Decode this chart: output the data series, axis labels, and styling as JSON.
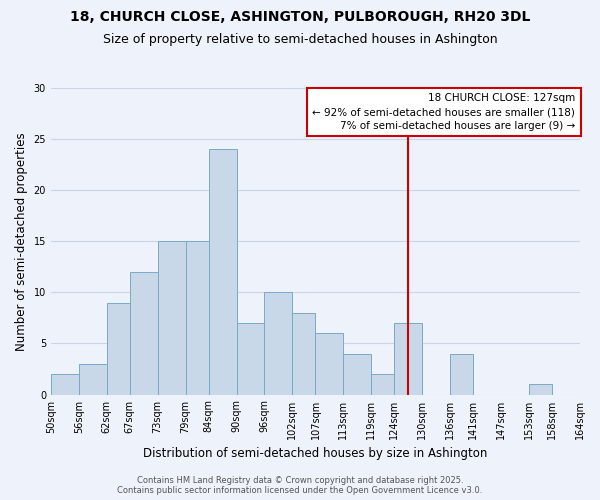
{
  "title": "18, CHURCH CLOSE, ASHINGTON, PULBOROUGH, RH20 3DL",
  "subtitle": "Size of property relative to semi-detached houses in Ashington",
  "xlabel": "Distribution of semi-detached houses by size in Ashington",
  "ylabel": "Number of semi-detached properties",
  "footnote1": "Contains HM Land Registry data © Crown copyright and database right 2025.",
  "footnote2": "Contains public sector information licensed under the Open Government Licence v3.0.",
  "bin_edges": [
    50,
    56,
    62,
    67,
    73,
    79,
    84,
    90,
    96,
    102,
    107,
    113,
    119,
    124,
    130,
    136,
    141,
    147,
    153,
    158,
    164
  ],
  "bin_labels": [
    "50sqm",
    "56sqm",
    "62sqm",
    "67sqm",
    "73sqm",
    "79sqm",
    "84sqm",
    "90sqm",
    "96sqm",
    "102sqm",
    "107sqm",
    "113sqm",
    "119sqm",
    "124sqm",
    "130sqm",
    "136sqm",
    "141sqm",
    "147sqm",
    "153sqm",
    "158sqm",
    "164sqm"
  ],
  "bar_heights": [
    2,
    3,
    9,
    12,
    15,
    15,
    24,
    7,
    10,
    8,
    6,
    4,
    2,
    7,
    0,
    4,
    0,
    0,
    1,
    0
  ],
  "bar_color": "#c8d8e8",
  "bar_edgecolor": "#7aaac8",
  "grid_color": "#c8d4e8",
  "vline_x": 127,
  "vline_color": "#cc0000",
  "annotation_title": "18 CHURCH CLOSE: 127sqm",
  "annotation_line1": "← 92% of semi-detached houses are smaller (118)",
  "annotation_line2": "7% of semi-detached houses are larger (9) →",
  "annotation_box_edgecolor": "#cc0000",
  "annotation_box_facecolor": "#ffffff",
  "ylim": [
    0,
    30
  ],
  "yticks": [
    0,
    5,
    10,
    15,
    20,
    25,
    30
  ],
  "background_color": "#eef2fa",
  "title_fontsize": 10,
  "subtitle_fontsize": 9,
  "axis_label_fontsize": 8.5,
  "tick_fontsize": 7,
  "annotation_fontsize": 7.5,
  "footnote_fontsize": 6
}
